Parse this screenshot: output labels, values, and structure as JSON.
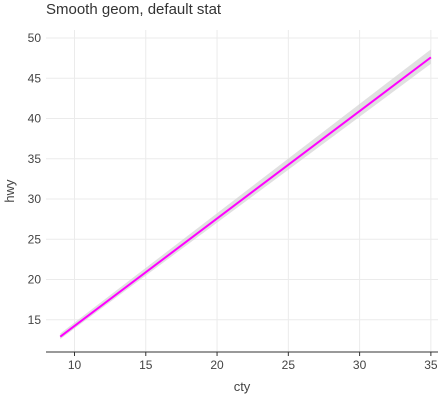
{
  "chart_data": {
    "type": "line",
    "title": "Smooth geom, default stat",
    "xlabel": "cty",
    "ylabel": "hwy",
    "xlim": [
      8,
      35.5
    ],
    "ylim": [
      11,
      51
    ],
    "xticks": [
      10,
      15,
      20,
      25,
      30,
      35
    ],
    "yticks": [
      15,
      20,
      25,
      30,
      35,
      40,
      45,
      50
    ],
    "grid": true,
    "series": [
      {
        "method": "linear smooth",
        "color": "#ff00ff",
        "x": [
          9,
          35
        ],
        "y": [
          12.9,
          47.6
        ],
        "ci_lower": [
          12.6,
          46.8
        ],
        "ci_upper": [
          13.3,
          48.6
        ],
        "ci_color": "#d3d3d3"
      }
    ]
  }
}
